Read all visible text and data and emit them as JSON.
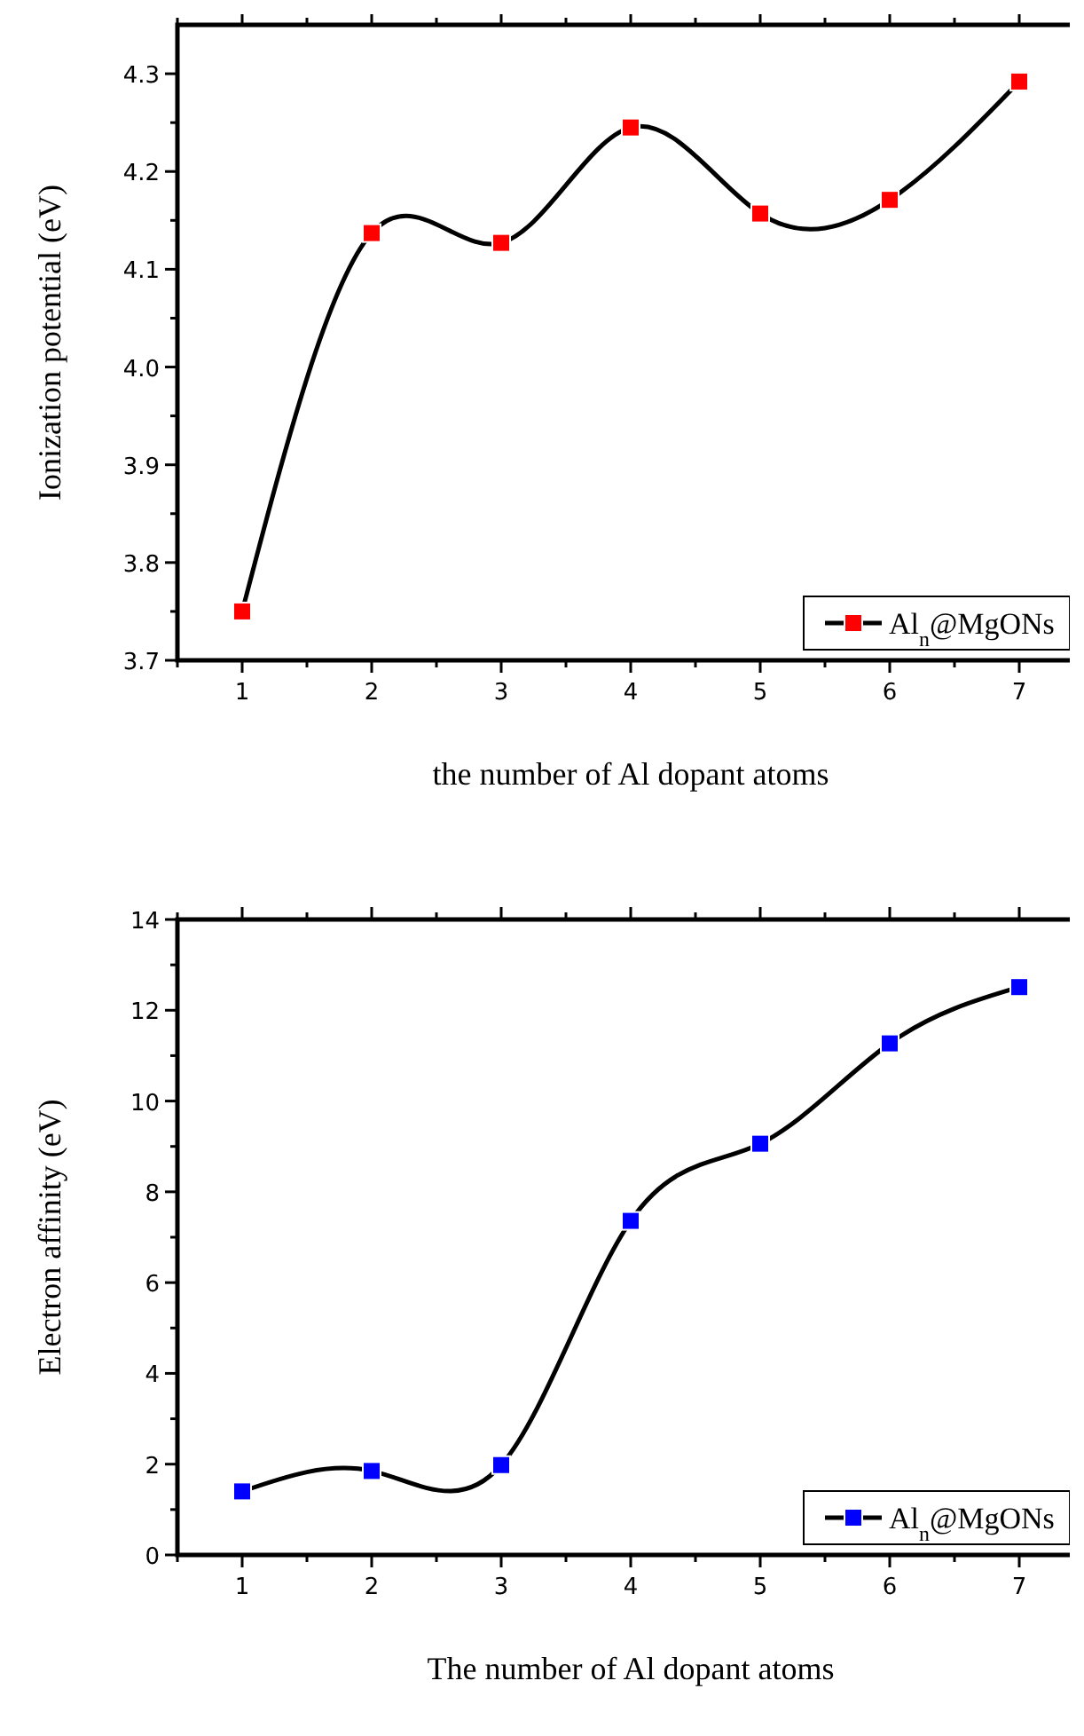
{
  "chart_data": [
    {
      "type": "line",
      "xlabel": "the number of Al dopant atoms",
      "ylabel": "Ionization potential (eV)",
      "x": [
        1,
        2,
        3,
        4,
        5,
        6,
        7
      ],
      "series": [
        {
          "name": "Al$_{n}$@MgONs",
          "color": "#ff0000",
          "values": [
            3.75,
            4.137,
            4.127,
            4.245,
            4.157,
            4.171,
            4.292
          ]
        }
      ],
      "xlim": [
        0.5,
        7.5
      ],
      "ylim": [
        3.7,
        4.35
      ],
      "xticks": [
        {
          "value": 0.5,
          "label": null
        },
        1,
        {
          "value": 1.5,
          "label": null
        },
        2,
        {
          "value": 2.5,
          "label": null
        },
        3,
        {
          "value": 3.5,
          "label": null
        },
        4,
        {
          "value": 4.5,
          "label": null
        },
        5,
        {
          "value": 5.5,
          "label": null
        },
        6,
        {
          "value": 6.5,
          "label": null
        },
        7,
        {
          "value": 7.5,
          "label": null
        }
      ],
      "yticks": [
        {
          "value": 3.7,
          "label": "3.7"
        },
        {
          "value": 3.75,
          "label": null
        },
        {
          "value": 3.8,
          "label": "3.8"
        },
        {
          "value": 3.85,
          "label": null
        },
        {
          "value": 3.9,
          "label": "3.9"
        },
        {
          "value": 3.95,
          "label": null
        },
        {
          "value": 4.0,
          "label": "4.0"
        },
        {
          "value": 4.05,
          "label": null
        },
        {
          "value": 4.1,
          "label": "4.1"
        },
        {
          "value": 4.15,
          "label": null
        },
        {
          "value": 4.2,
          "label": "4.2"
        },
        {
          "value": 4.25,
          "label": null
        },
        {
          "value": 4.3,
          "label": "4.3"
        }
      ],
      "marker": "square",
      "legend": "bottom right",
      "grid": false
    },
    {
      "type": "line",
      "xlabel": "The number of  Al dopant atoms",
      "ylabel": "Electron affinity (eV)",
      "x": [
        1,
        2,
        3,
        4,
        5,
        6,
        7
      ],
      "series": [
        {
          "name": "Al$_{n}$@MgONs",
          "color": "#0000ff",
          "values": [
            1.4,
            1.85,
            1.98,
            7.36,
            9.06,
            11.27,
            12.51
          ]
        }
      ],
      "xlim": [
        0.5,
        7.5
      ],
      "ylim": [
        0,
        14
      ],
      "xticks": [
        {
          "value": 0.5,
          "label": null
        },
        1,
        {
          "value": 1.5,
          "label": null
        },
        2,
        {
          "value": 2.5,
          "label": null
        },
        3,
        {
          "value": 3.5,
          "label": null
        },
        4,
        {
          "value": 4.5,
          "label": null
        },
        5,
        {
          "value": 5.5,
          "label": null
        },
        6,
        {
          "value": 6.5,
          "label": null
        },
        7,
        {
          "value": 7.5,
          "label": null
        }
      ],
      "yticks": [
        0,
        {
          "value": 1,
          "label": null
        },
        2,
        {
          "value": 3,
          "label": null
        },
        4,
        {
          "value": 5,
          "label": null
        },
        6,
        {
          "value": 7,
          "label": null
        },
        8,
        {
          "value": 9,
          "label": null
        },
        10,
        {
          "value": 11,
          "label": null
        },
        12,
        {
          "value": 13,
          "label": null
        },
        14
      ],
      "marker": "square",
      "legend": "bottom right",
      "grid": false
    }
  ]
}
